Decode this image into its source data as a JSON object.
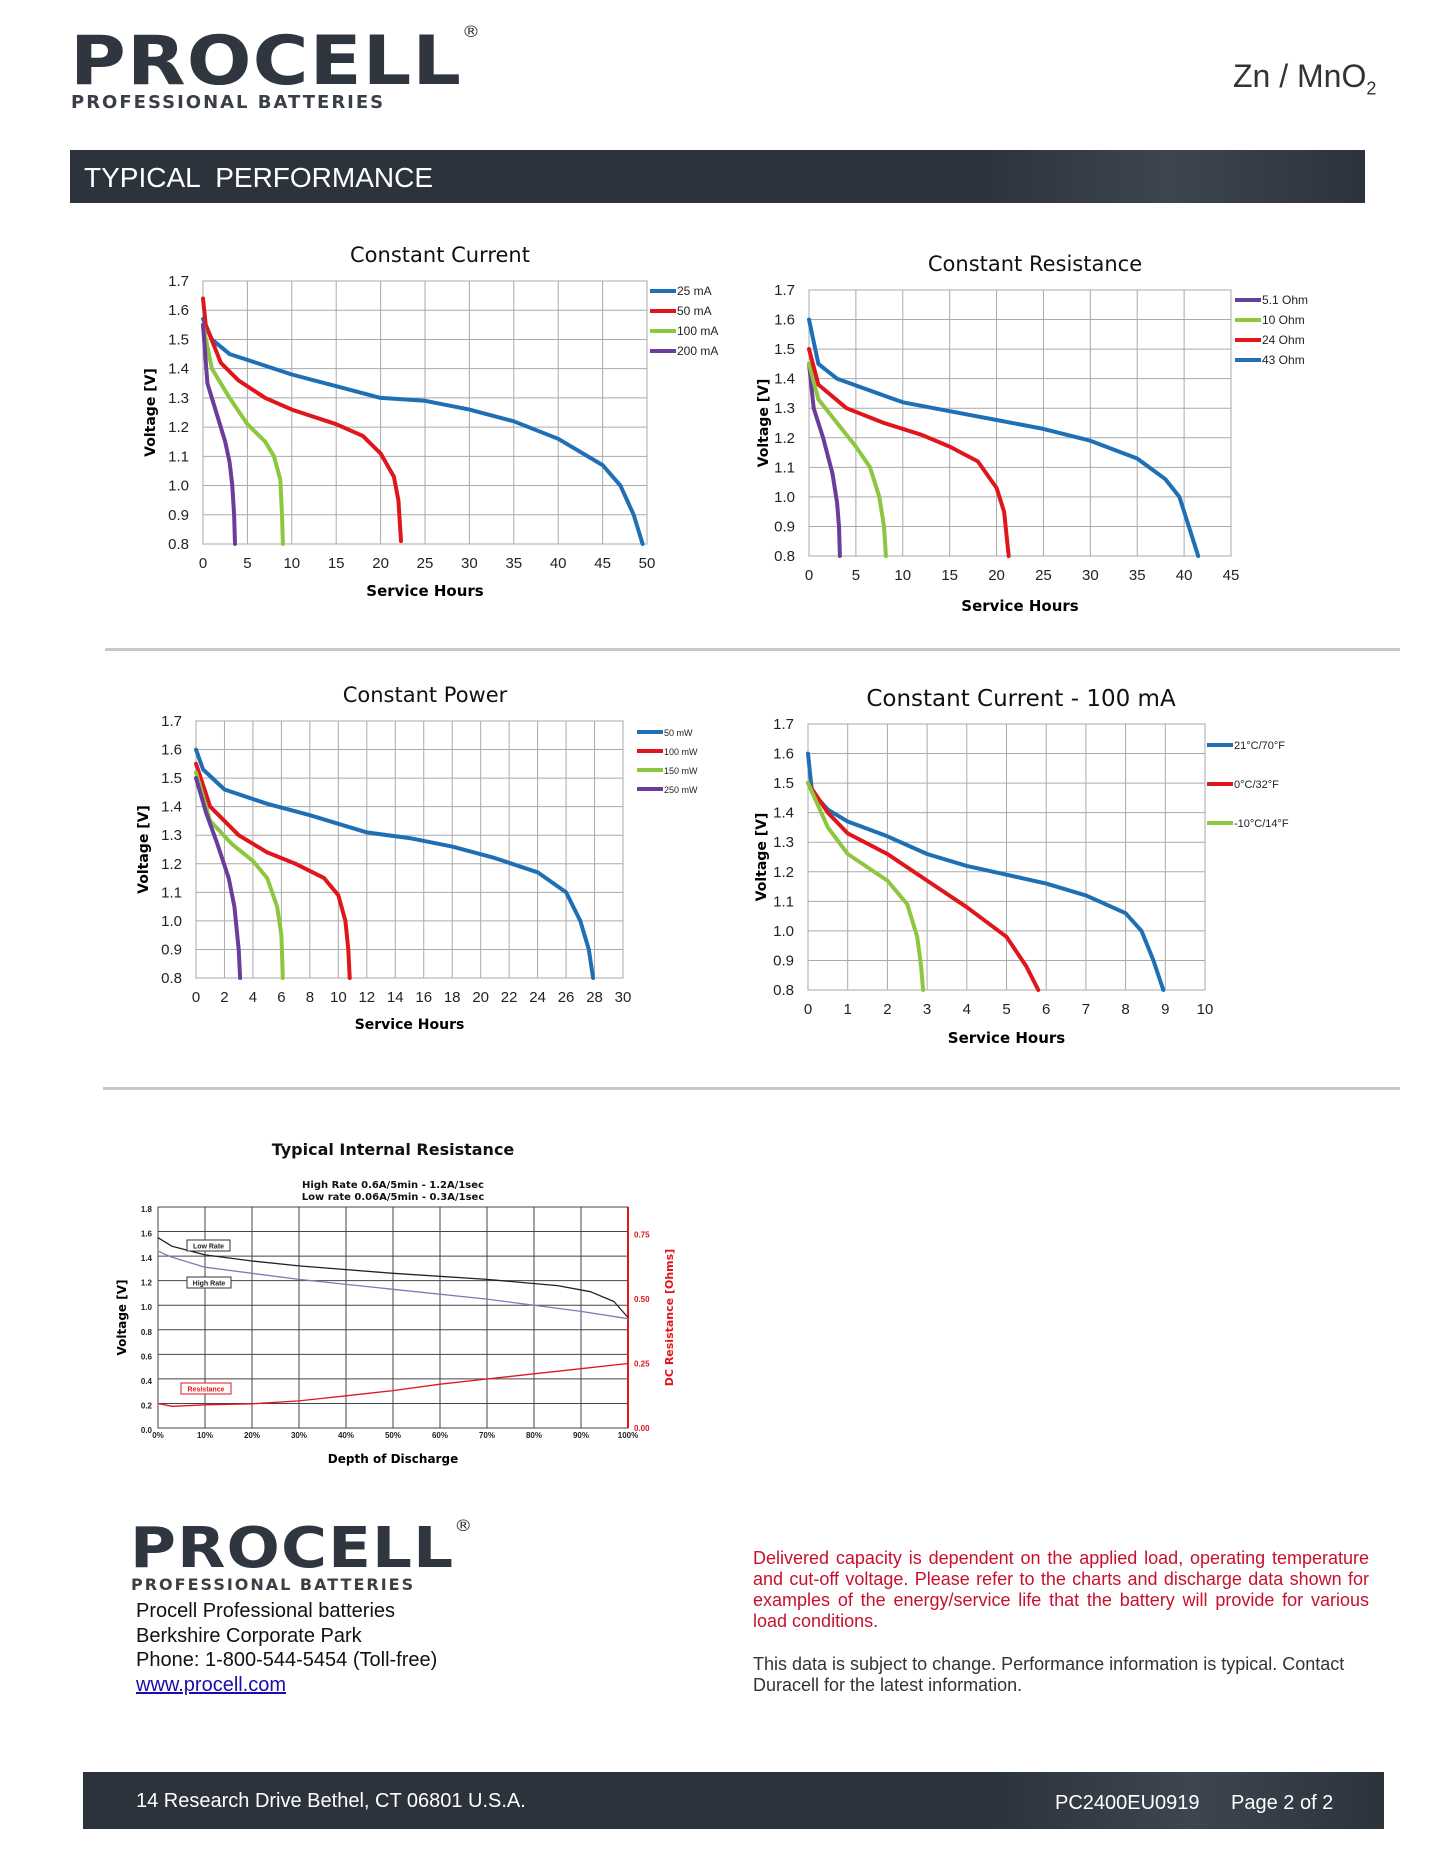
{
  "header": {
    "brand": "PROCELL",
    "brand_mark": "®",
    "tagline": "PROFESSIONAL BATTERIES",
    "chemistry": "Zn / MnO",
    "chemistry_sub": "2"
  },
  "section_title": "TYPICAL  PERFORMANCE",
  "colors": {
    "blue": "#1f6fb5",
    "red": "#e0161d",
    "green": "#8dc63f",
    "purple": "#6a3d9a",
    "bar": "#2c333d",
    "notice_red": "#c8102e"
  },
  "chart_data": [
    {
      "type": "line",
      "title": "Constant Current",
      "xlabel": "Service Hours",
      "ylabel": "Voltage [V]",
      "xlim": [
        0,
        50
      ],
      "ylim": [
        0.8,
        1.7
      ],
      "grid": true,
      "legend": "right",
      "xticks": [
        0,
        5,
        10,
        15,
        20,
        25,
        30,
        35,
        40,
        45,
        50
      ],
      "yticks": [
        "0.8",
        "0.9",
        "1.0",
        "1.1",
        "1.2",
        "1.3",
        "1.4",
        "1.5",
        "1.6",
        "1.7"
      ],
      "series": [
        {
          "name": "25 mA",
          "color": "#1f6fb5",
          "points": [
            [
              0,
              1.57
            ],
            [
              1,
              1.5
            ],
            [
              3,
              1.45
            ],
            [
              5,
              1.43
            ],
            [
              10,
              1.38
            ],
            [
              15,
              1.34
            ],
            [
              20,
              1.3
            ],
            [
              25,
              1.29
            ],
            [
              30,
              1.26
            ],
            [
              35,
              1.22
            ],
            [
              40,
              1.16
            ],
            [
              45,
              1.07
            ],
            [
              47,
              1.0
            ],
            [
              48.5,
              0.9
            ],
            [
              49.5,
              0.8
            ]
          ]
        },
        {
          "name": "50 mA",
          "color": "#e0161d",
          "points": [
            [
              0,
              1.64
            ],
            [
              0.3,
              1.55
            ],
            [
              2,
              1.42
            ],
            [
              4,
              1.36
            ],
            [
              7,
              1.3
            ],
            [
              10,
              1.26
            ],
            [
              15,
              1.21
            ],
            [
              18,
              1.17
            ],
            [
              20,
              1.11
            ],
            [
              21.5,
              1.03
            ],
            [
              22,
              0.95
            ],
            [
              22.3,
              0.81
            ]
          ]
        },
        {
          "name": "100 mA",
          "color": "#8dc63f",
          "points": [
            [
              0,
              1.55
            ],
            [
              1,
              1.4
            ],
            [
              3,
              1.3
            ],
            [
              5,
              1.21
            ],
            [
              7,
              1.15
            ],
            [
              8,
              1.1
            ],
            [
              8.7,
              1.02
            ],
            [
              8.9,
              0.9
            ],
            [
              9,
              0.8
            ]
          ]
        },
        {
          "name": "200 mA",
          "color": "#6a3d9a",
          "points": [
            [
              0,
              1.55
            ],
            [
              0.5,
              1.35
            ],
            [
              1.5,
              1.25
            ],
            [
              2.5,
              1.15
            ],
            [
              3,
              1.08
            ],
            [
              3.3,
              1.0
            ],
            [
              3.5,
              0.9
            ],
            [
              3.6,
              0.8
            ]
          ]
        }
      ]
    },
    {
      "type": "line",
      "title": "Constant Resistance",
      "xlabel": "Service Hours",
      "ylabel": "Voltage [V]",
      "xlim": [
        0,
        45
      ],
      "ylim": [
        0.8,
        1.7
      ],
      "grid": true,
      "legend": "top-right",
      "xticks": [
        0,
        5,
        10,
        15,
        20,
        25,
        30,
        35,
        40,
        45
      ],
      "yticks": [
        "0.8",
        "0.9",
        "1.0",
        "1.1",
        "1.2",
        "1.3",
        "1.4",
        "1.5",
        "1.6",
        "1.7"
      ],
      "series": [
        {
          "name": "5.1 Ohm",
          "color": "#6a3d9a",
          "points": [
            [
              0,
              1.45
            ],
            [
              0.5,
              1.3
            ],
            [
              1.5,
              1.2
            ],
            [
              2.5,
              1.08
            ],
            [
              3,
              0.98
            ],
            [
              3.2,
              0.9
            ],
            [
              3.3,
              0.8
            ]
          ]
        },
        {
          "name": "10 Ohm",
          "color": "#8dc63f",
          "points": [
            [
              0,
              1.45
            ],
            [
              1,
              1.33
            ],
            [
              3,
              1.25
            ],
            [
              5,
              1.17
            ],
            [
              6.5,
              1.1
            ],
            [
              7.5,
              1.0
            ],
            [
              8,
              0.9
            ],
            [
              8.2,
              0.8
            ]
          ]
        },
        {
          "name": "24 Ohm",
          "color": "#e0161d",
          "points": [
            [
              0,
              1.5
            ],
            [
              1,
              1.38
            ],
            [
              4,
              1.3
            ],
            [
              8,
              1.25
            ],
            [
              12,
              1.21
            ],
            [
              15,
              1.17
            ],
            [
              18,
              1.12
            ],
            [
              20,
              1.03
            ],
            [
              20.8,
              0.95
            ],
            [
              21.3,
              0.8
            ]
          ]
        },
        {
          "name": "43 Ohm",
          "color": "#1f6fb5",
          "points": [
            [
              0,
              1.6
            ],
            [
              1,
              1.45
            ],
            [
              3,
              1.4
            ],
            [
              10,
              1.32
            ],
            [
              15,
              1.29
            ],
            [
              20,
              1.26
            ],
            [
              25,
              1.23
            ],
            [
              30,
              1.19
            ],
            [
              35,
              1.13
            ],
            [
              38,
              1.06
            ],
            [
              39.5,
              1.0
            ],
            [
              40.5,
              0.9
            ],
            [
              41.5,
              0.8
            ]
          ]
        }
      ]
    },
    {
      "type": "line",
      "title": "Constant Power",
      "xlabel": "Service Hours",
      "ylabel": "Voltage [V]",
      "xlim": [
        0,
        30
      ],
      "ylim": [
        0.8,
        1.7
      ],
      "grid": true,
      "legend": "right",
      "xticks": [
        0,
        2,
        4,
        6,
        8,
        10,
        12,
        14,
        16,
        18,
        20,
        22,
        24,
        26,
        28,
        30
      ],
      "yticks": [
        "0.8",
        "0.9",
        "1.0",
        "1.1",
        "1.2",
        "1.3",
        "1.4",
        "1.5",
        "1.6",
        "1.7"
      ],
      "series": [
        {
          "name": "50 mW",
          "color": "#1f6fb5",
          "points": [
            [
              0,
              1.6
            ],
            [
              0.5,
              1.53
            ],
            [
              2,
              1.46
            ],
            [
              5,
              1.41
            ],
            [
              8,
              1.37
            ],
            [
              10,
              1.34
            ],
            [
              12,
              1.31
            ],
            [
              15,
              1.29
            ],
            [
              18,
              1.26
            ],
            [
              21,
              1.22
            ],
            [
              24,
              1.17
            ],
            [
              26,
              1.1
            ],
            [
              27,
              1.0
            ],
            [
              27.6,
              0.9
            ],
            [
              27.9,
              0.8
            ]
          ]
        },
        {
          "name": "100 mW",
          "color": "#e0161d",
          "points": [
            [
              0,
              1.55
            ],
            [
              1,
              1.4
            ],
            [
              3,
              1.3
            ],
            [
              5,
              1.24
            ],
            [
              7,
              1.2
            ],
            [
              9,
              1.15
            ],
            [
              10,
              1.09
            ],
            [
              10.5,
              1.0
            ],
            [
              10.7,
              0.9
            ],
            [
              10.8,
              0.8
            ]
          ]
        },
        {
          "name": "150 mW",
          "color": "#8dc63f",
          "points": [
            [
              0,
              1.52
            ],
            [
              1,
              1.35
            ],
            [
              2.5,
              1.27
            ],
            [
              4,
              1.21
            ],
            [
              5,
              1.15
            ],
            [
              5.7,
              1.05
            ],
            [
              6,
              0.95
            ],
            [
              6.1,
              0.8
            ]
          ]
        },
        {
          "name": "250 mW",
          "color": "#6a3d9a",
          "points": [
            [
              0,
              1.5
            ],
            [
              0.7,
              1.38
            ],
            [
              1.5,
              1.27
            ],
            [
              2.3,
              1.15
            ],
            [
              2.7,
              1.05
            ],
            [
              3,
              0.9
            ],
            [
              3.1,
              0.8
            ]
          ]
        }
      ]
    },
    {
      "type": "line",
      "title": "Constant Current - 100 mA",
      "xlabel": "Service Hours",
      "ylabel": "Voltage [V]",
      "xlim": [
        0,
        10
      ],
      "ylim": [
        0.8,
        1.7
      ],
      "grid": true,
      "legend": "right",
      "xticks": [
        0,
        1,
        2,
        3,
        4,
        5,
        6,
        7,
        8,
        9,
        10
      ],
      "yticks": [
        "0.8",
        "0.9",
        "1.0",
        "1.1",
        "1.2",
        "1.3",
        "1.4",
        "1.5",
        "1.6",
        "1.7"
      ],
      "series": [
        {
          "name": "21°C/70°F",
          "color": "#1f6fb5",
          "points": [
            [
              0,
              1.6
            ],
            [
              0.1,
              1.47
            ],
            [
              0.5,
              1.41
            ],
            [
              1,
              1.37
            ],
            [
              2,
              1.32
            ],
            [
              3,
              1.26
            ],
            [
              4,
              1.22
            ],
            [
              5,
              1.19
            ],
            [
              6,
              1.16
            ],
            [
              7,
              1.12
            ],
            [
              7.5,
              1.09
            ],
            [
              8,
              1.06
            ],
            [
              8.4,
              1.0
            ],
            [
              8.7,
              0.9
            ],
            [
              8.95,
              0.8
            ]
          ]
        },
        {
          "name": "0°C/32°F",
          "color": "#e0161d",
          "points": [
            [
              0,
              1.5
            ],
            [
              0.5,
              1.4
            ],
            [
              1,
              1.33
            ],
            [
              2,
              1.26
            ],
            [
              3,
              1.17
            ],
            [
              4,
              1.08
            ],
            [
              5,
              0.98
            ],
            [
              5.5,
              0.88
            ],
            [
              5.8,
              0.8
            ]
          ]
        },
        {
          "name": "-10°C/14°F",
          "color": "#8dc63f",
          "points": [
            [
              0,
              1.5
            ],
            [
              0.5,
              1.35
            ],
            [
              1,
              1.26
            ],
            [
              2,
              1.17
            ],
            [
              2.5,
              1.09
            ],
            [
              2.75,
              0.98
            ],
            [
              2.85,
              0.88
            ],
            [
              2.9,
              0.8
            ]
          ]
        }
      ]
    },
    {
      "type": "line",
      "title": "Typical Internal Resistance",
      "subtitle": [
        "High Rate 0.6A/5min - 1.2A/1sec",
        "Low rate 0.06A/5min - 0.3A/1sec"
      ],
      "xlabel": "Depth of Discharge",
      "ylabel": "Voltage [V]",
      "y2label": "DC Resistance [Ohms]",
      "xlim": [
        0,
        100
      ],
      "ylim": [
        0,
        1.8
      ],
      "y2lim": [
        0,
        0.857
      ],
      "grid": true,
      "legend": "inline labels",
      "xticks": [
        "0%",
        "10%",
        "20%",
        "30%",
        "40%",
        "50%",
        "60%",
        "70%",
        "80%",
        "90%",
        "100%"
      ],
      "yticks": [
        "0.0",
        "0.2",
        "0.4",
        "0.6",
        "0.8",
        "1.0",
        "1.2",
        "1.4",
        "1.6",
        "1.8"
      ],
      "y2ticks": [
        "0.00",
        "0.25",
        "0.50",
        "0.75"
      ],
      "series": [
        {
          "name": "Low Rate",
          "color": "#222222",
          "axis": "left",
          "points": [
            [
              0,
              1.55
            ],
            [
              3,
              1.48
            ],
            [
              10,
              1.41
            ],
            [
              20,
              1.36
            ],
            [
              30,
              1.32
            ],
            [
              50,
              1.26
            ],
            [
              70,
              1.21
            ],
            [
              85,
              1.16
            ],
            [
              92,
              1.11
            ],
            [
              97,
              1.03
            ],
            [
              100,
              0.9
            ]
          ]
        },
        {
          "name": "High Rate",
          "color": "#7b7bb8",
          "axis": "left",
          "points": [
            [
              0,
              1.44
            ],
            [
              3,
              1.39
            ],
            [
              10,
              1.31
            ],
            [
              30,
              1.21
            ],
            [
              50,
              1.13
            ],
            [
              70,
              1.05
            ],
            [
              90,
              0.95
            ],
            [
              100,
              0.89
            ]
          ]
        },
        {
          "name": "Resistance",
          "color": "#e0161d",
          "axis": "right",
          "points": [
            [
              0,
              0.095
            ],
            [
              3,
              0.084
            ],
            [
              10,
              0.09
            ],
            [
              20,
              0.094
            ],
            [
              30,
              0.105
            ],
            [
              40,
              0.125
            ],
            [
              50,
              0.145
            ],
            [
              60,
              0.17
            ],
            [
              70,
              0.19
            ],
            [
              80,
              0.21
            ],
            [
              90,
              0.23
            ],
            [
              100,
              0.25
            ]
          ]
        }
      ]
    }
  ],
  "footer": {
    "brand": "PROCELL",
    "brand_mark": "®",
    "tagline": "PROFESSIONAL BATTERIES",
    "address_lines": [
      "Procell Professional batteries",
      "Berkshire Corporate Park",
      "Phone: 1-800-544-5454 (Toll-free)"
    ],
    "website": "www.procell.com",
    "notice": "Delivered capacity is dependent on the applied load, operating temperature and cut-off voltage. Please refer to the charts and discharge data shown for examples of the energy/service life that the battery will provide for various load conditions.",
    "disclaimer": "This data is subject to change. Performance information is typical. Contact Duracell for the latest information.",
    "street": "14 Research Drive Bethel, CT 06801 U.S.A.",
    "doc_code": "PC2400EU0919",
    "page": "Page 2 of 2"
  }
}
